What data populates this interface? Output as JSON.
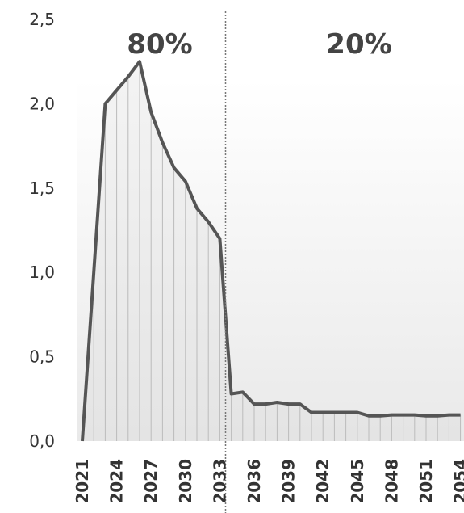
{
  "chart_data": {
    "type": "area",
    "x": [
      2021,
      2022,
      2023,
      2024,
      2025,
      2026,
      2027,
      2028,
      2029,
      2030,
      2031,
      2032,
      2033,
      2034,
      2035,
      2036,
      2037,
      2038,
      2039,
      2040,
      2041,
      2042,
      2043,
      2044,
      2045,
      2046,
      2047,
      2048,
      2049,
      2050,
      2051,
      2052,
      2053,
      2054
    ],
    "values": [
      0.0,
      1.0,
      2.0,
      2.08,
      2.16,
      2.25,
      1.95,
      1.77,
      1.62,
      1.54,
      1.38,
      1.3,
      1.2,
      0.28,
      0.29,
      0.22,
      0.22,
      0.23,
      0.22,
      0.22,
      0.17,
      0.17,
      0.17,
      0.17,
      0.17,
      0.15,
      0.15,
      0.155,
      0.155,
      0.155,
      0.15,
      0.15,
      0.155,
      0.155
    ],
    "x_tick_labels": [
      "2021",
      "2024",
      "2027",
      "2030",
      "2033",
      "2036",
      "2039",
      "2042",
      "2045",
      "2048",
      "2051",
      "2054"
    ],
    "y_tick_labels": [
      "0,0",
      "0,5",
      "1,0",
      "1,5",
      "2,0",
      "2,5"
    ],
    "ylim": [
      0,
      2.5
    ],
    "annotations": {
      "left_share": "80%",
      "right_share": "20%"
    },
    "divider_after_x": 2033.5,
    "colors": {
      "line": "#555555",
      "fill": "#e8e8e8",
      "drops": "#bbbbbb",
      "divider": "#777777"
    }
  }
}
